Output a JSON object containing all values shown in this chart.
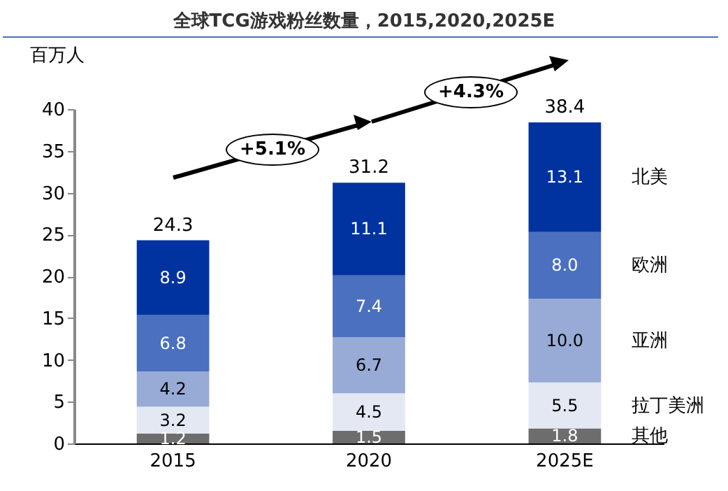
{
  "chart_data": {
    "type": "bar",
    "title": "全球TCG游戏粉丝数量，2015,2020,2025E",
    "ylabel": "百万人",
    "categories": [
      "2015",
      "2020",
      "2025E"
    ],
    "stacked": true,
    "series": [
      {
        "name": "其他",
        "color": "#6d6d6d",
        "values": [
          1.2,
          1.5,
          1.8
        ]
      },
      {
        "name": "拉丁美洲",
        "color": "#e3e8f3",
        "values": [
          3.2,
          4.5,
          5.5
        ]
      },
      {
        "name": "亚洲",
        "color": "#98abd6",
        "values": [
          4.2,
          6.7,
          10.0
        ],
        "value_labels": [
          "4.2",
          "6.7",
          "10.0"
        ]
      },
      {
        "name": "欧洲",
        "color": "#4a70bf",
        "values": [
          6.8,
          7.4,
          8.0
        ],
        "value_labels": [
          "6.8",
          "7.4",
          "8.0"
        ]
      },
      {
        "name": "北美",
        "color": "#0033a0",
        "values": [
          8.9,
          11.1,
          13.1
        ]
      }
    ],
    "totals": [
      "24.3",
      "31.2",
      "38.4"
    ],
    "ylim": [
      0,
      40
    ],
    "yticks": [
      0,
      5,
      10,
      15,
      20,
      25,
      30,
      35,
      40
    ],
    "data_labels": true,
    "grid": false,
    "legend": "right",
    "annotations": [
      "+5.1%",
      "+4.3%"
    ]
  }
}
